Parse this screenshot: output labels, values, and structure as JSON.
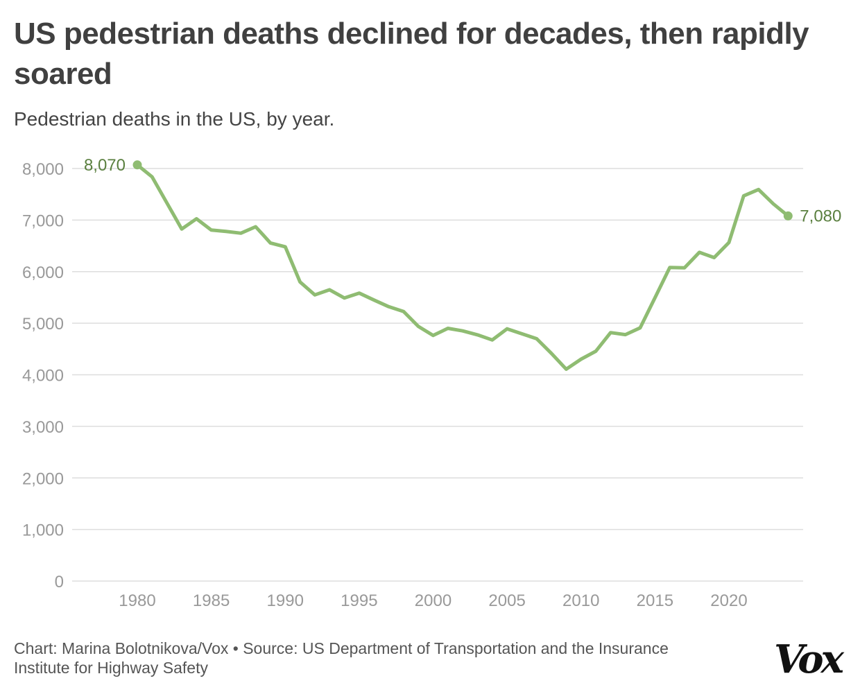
{
  "title": "US pedestrian deaths declined for decades, then rapidly soared",
  "subtitle": "Pedestrian deaths in the US, by year.",
  "footer": "Chart: Marina Bolotnikova/Vox • Source: US Department of Transportation and the Insurance Institute for Highway Safety",
  "logo": "Vox",
  "colors": {
    "line": "#8fbc72",
    "label": "#5a7f3f",
    "grid": "#dddddd",
    "tick": "#999999"
  },
  "chart_data": {
    "type": "line",
    "title": "US pedestrian deaths declined for decades, then rapidly soared",
    "subtitle": "Pedestrian deaths in the US, by year.",
    "xlabel": "",
    "ylabel": "",
    "xlim": [
      1980,
      2024
    ],
    "ylim": [
      0,
      8000
    ],
    "grid": true,
    "x_ticks": [
      "1980",
      "1985",
      "1990",
      "1995",
      "2000",
      "2005",
      "2010",
      "2015",
      "2020"
    ],
    "y_ticks": [
      "0",
      "1,000",
      "2,000",
      "3,000",
      "4,000",
      "5,000",
      "6,000",
      "7,000",
      "8,000"
    ],
    "x": [
      1980,
      1981,
      1982,
      1983,
      1984,
      1985,
      1986,
      1987,
      1988,
      1989,
      1990,
      1991,
      1992,
      1993,
      1994,
      1995,
      1996,
      1997,
      1998,
      1999,
      2000,
      2001,
      2002,
      2003,
      2004,
      2005,
      2006,
      2007,
      2008,
      2009,
      2010,
      2011,
      2012,
      2013,
      2014,
      2015,
      2016,
      2017,
      2018,
      2019,
      2020,
      2021,
      2022,
      2023,
      2024
    ],
    "values": [
      8070,
      7837,
      7331,
      6826,
      7025,
      6808,
      6779,
      6745,
      6870,
      6556,
      6482,
      5801,
      5549,
      5649,
      5489,
      5584,
      5449,
      5321,
      5228,
      4939,
      4763,
      4901,
      4851,
      4774,
      4675,
      4892,
      4795,
      4699,
      4414,
      4109,
      4302,
      4457,
      4818,
      4779,
      4910,
      5494,
      6080,
      6075,
      6374,
      6272,
      6565,
      7470,
      7593,
      7314,
      7080
    ],
    "annotations": [
      {
        "x": 1980,
        "y": 8070,
        "text": "8,070"
      },
      {
        "x": 2024,
        "y": 7080,
        "text": "7,080"
      }
    ]
  }
}
